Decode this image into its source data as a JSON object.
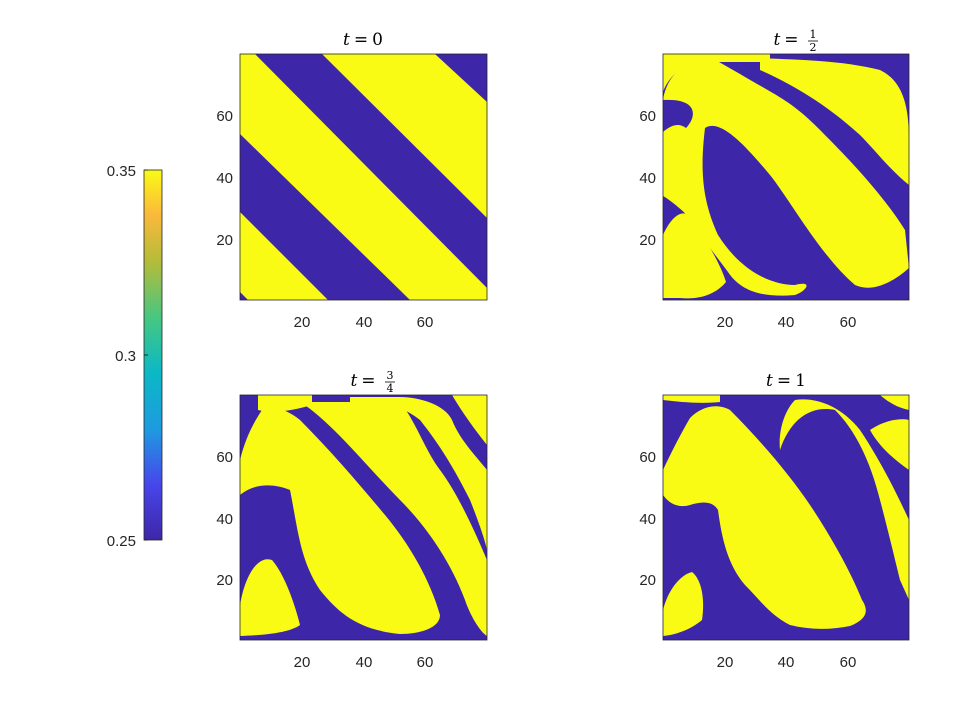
{
  "colors": {
    "low": "#3e26a8",
    "high": "#f9fb15",
    "axis": "#262626"
  },
  "colorbar": {
    "colormap": "parula",
    "tick_labels": [
      "0.35",
      "0.3",
      "0.25"
    ],
    "ticks": [
      0.35,
      0.3,
      0.25
    ],
    "range": [
      0.25,
      0.35
    ]
  },
  "chart_data": [
    {
      "type": "heatmap",
      "title": "t = 0",
      "title_t": "t",
      "title_value": "0",
      "xticks": [
        "20",
        "40",
        "60"
      ],
      "yticks": [
        "60",
        "40",
        "20"
      ],
      "xlim": [
        0,
        80
      ],
      "ylim": [
        0,
        80
      ],
      "values_range": [
        0.25,
        0.35
      ]
    },
    {
      "type": "heatmap",
      "title": "t = 1/2",
      "title_t": "t",
      "title_num": "1",
      "title_den": "2",
      "xticks": [
        "20",
        "40",
        "60"
      ],
      "yticks": [
        "60",
        "40",
        "20"
      ],
      "xlim": [
        0,
        80
      ],
      "ylim": [
        0,
        80
      ],
      "values_range": [
        0.25,
        0.35
      ]
    },
    {
      "type": "heatmap",
      "title": "t = 3/4",
      "title_t": "t",
      "title_num": "3",
      "title_den": "4",
      "xticks": [
        "20",
        "40",
        "60"
      ],
      "yticks": [
        "60",
        "40",
        "20"
      ],
      "xlim": [
        0,
        80
      ],
      "ylim": [
        0,
        80
      ],
      "values_range": [
        0.25,
        0.35
      ]
    },
    {
      "type": "heatmap",
      "title": "t = 1",
      "title_t": "t",
      "title_value": "1",
      "xticks": [
        "20",
        "40",
        "60"
      ],
      "yticks": [
        "60",
        "40",
        "20"
      ],
      "xlim": [
        0,
        80
      ],
      "ylim": [
        0,
        80
      ],
      "values_range": [
        0.25,
        0.35
      ]
    }
  ]
}
